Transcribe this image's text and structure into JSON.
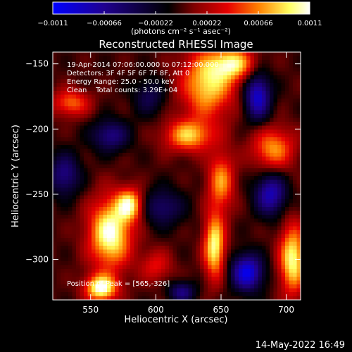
{
  "chart_data": {
    "type": "heatmap",
    "title": "Reconstructed RHESSI Image",
    "xlabel": "Heliocentric X (arcsec)",
    "ylabel": "Heliocentric Y (arcsec)",
    "xlim": [
      521,
      711
    ],
    "ylim": [
      -331,
      -141
    ],
    "x_ticks": [
      550,
      600,
      650,
      700
    ],
    "x_tick_labels": [
      "550",
      "600",
      "650",
      "700"
    ],
    "y_ticks": [
      -150,
      -200,
      -250,
      -300
    ],
    "y_tick_labels": [
      "−150",
      "−200",
      "−250",
      "−300"
    ],
    "colorbar": {
      "range": [
        -0.0011,
        0.0011
      ],
      "ticks": [
        -0.0011,
        -0.00066,
        -0.00022,
        0.00022,
        0.00066,
        0.0011
      ],
      "tick_labels": [
        "−0.0011",
        "−0.00066",
        "−0.00022",
        "0.00022",
        "0.00066",
        "0.0011"
      ],
      "units_label": "(photons cm⁻² s⁻¹ asec⁻²)",
      "colors": [
        "#0000ff",
        "#1a0090",
        "#000000",
        "#800000",
        "#e60000",
        "#ff8000",
        "#ffff60",
        "#ffffff"
      ]
    },
    "annotations": [
      "19-Apr-2014 07:06:00.000 to 07:12:00.000",
      "Detectors: 3F 4F 5F 6F 7F 8F, Att 0",
      "Energy Range: 25.0 - 50.0 keV",
      "Clean    Total counts: 3.29E+04"
    ],
    "peak_label": "Position of Peak = [565,-326]",
    "peak": {
      "x": 565,
      "y": -326
    },
    "grid": false,
    "blobs": [
      {
        "x": 565,
        "y": -280,
        "rx": 16,
        "ry": 26,
        "v": 0.0011
      },
      {
        "x": 580,
        "y": -258,
        "rx": 10,
        "ry": 12,
        "v": 0.0009
      },
      {
        "x": 558,
        "y": -322,
        "rx": 12,
        "ry": 10,
        "v": 0.0011
      },
      {
        "x": 640,
        "y": -165,
        "rx": 20,
        "ry": 26,
        "v": 0.0009
      },
      {
        "x": 660,
        "y": -150,
        "rx": 16,
        "ry": 12,
        "v": 0.0008
      },
      {
        "x": 625,
        "y": -205,
        "rx": 18,
        "ry": 12,
        "v": 0.0008
      },
      {
        "x": 650,
        "y": -240,
        "rx": 10,
        "ry": 22,
        "v": 0.0007
      },
      {
        "x": 645,
        "y": -290,
        "rx": 8,
        "ry": 24,
        "v": 0.001
      },
      {
        "x": 705,
        "y": -300,
        "rx": 10,
        "ry": 26,
        "v": 0.001
      },
      {
        "x": 690,
        "y": -215,
        "rx": 16,
        "ry": 16,
        "v": 0.0007
      },
      {
        "x": 535,
        "y": -180,
        "rx": 14,
        "ry": 10,
        "v": 0.0006
      },
      {
        "x": 600,
        "y": -305,
        "rx": 12,
        "ry": 12,
        "v": 0.0004
      },
      {
        "x": 530,
        "y": -235,
        "rx": 12,
        "ry": 16,
        "v": -0.0006
      },
      {
        "x": 565,
        "y": -205,
        "rx": 14,
        "ry": 12,
        "v": -0.0006
      },
      {
        "x": 605,
        "y": -260,
        "rx": 16,
        "ry": 14,
        "v": -0.0005
      },
      {
        "x": 595,
        "y": -175,
        "rx": 12,
        "ry": 14,
        "v": -0.0004
      },
      {
        "x": 678,
        "y": -175,
        "rx": 10,
        "ry": 18,
        "v": -0.0009
      },
      {
        "x": 688,
        "y": -250,
        "rx": 12,
        "ry": 16,
        "v": -0.0008
      },
      {
        "x": 670,
        "y": -310,
        "rx": 12,
        "ry": 14,
        "v": -0.001
      },
      {
        "x": 620,
        "y": -325,
        "rx": 10,
        "ry": 8,
        "v": -0.0006
      }
    ]
  },
  "footer": {
    "timestamp": "14-May-2022 16:49"
  }
}
